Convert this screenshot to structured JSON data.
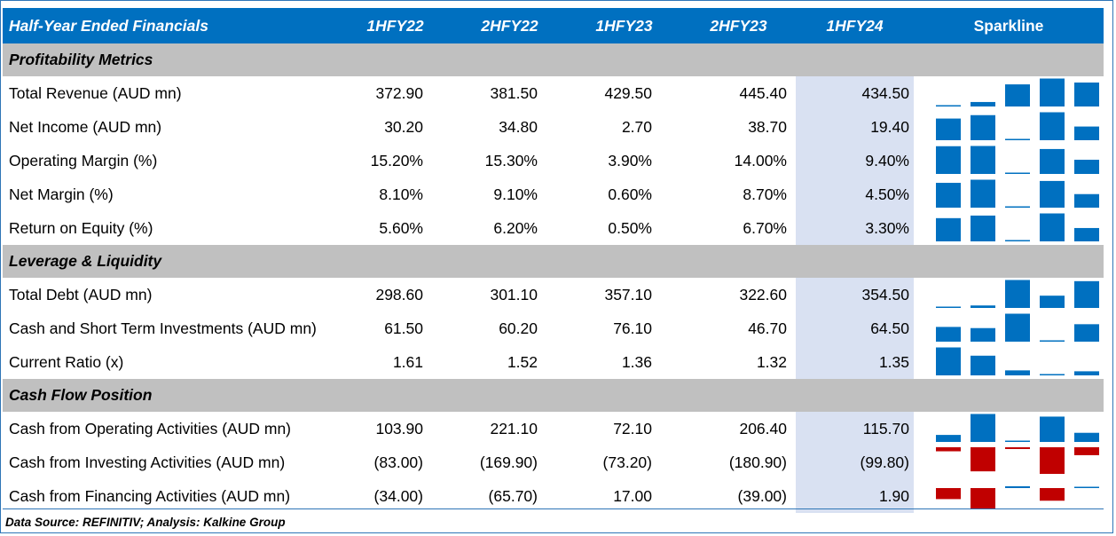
{
  "header": {
    "title": "Half-Year Ended Financials",
    "periods": [
      "1HFY22",
      "2HFY22",
      "1HFY23",
      "2HFY23",
      "1HFY24"
    ],
    "sparkline": "Sparkline"
  },
  "sections": [
    {
      "title": "Profitability Metrics",
      "rows": [
        {
          "label": "Total Revenue (AUD mn)",
          "values": [
            "372.90",
            "381.50",
            "429.50",
            "445.40",
            "434.50"
          ],
          "data": [
            372.9,
            381.5,
            429.5,
            445.4,
            434.5
          ]
        },
        {
          "label": "Net Income (AUD mn)",
          "values": [
            "30.20",
            "34.80",
            "2.70",
            "38.70",
            "19.40"
          ],
          "data": [
            30.2,
            34.8,
            2.7,
            38.7,
            19.4
          ]
        },
        {
          "label": "Operating Margin (%)",
          "values": [
            "15.20%",
            "15.30%",
            "3.90%",
            "14.00%",
            "9.40%"
          ],
          "data": [
            15.2,
            15.3,
            3.9,
            14.0,
            9.4
          ]
        },
        {
          "label": "Net Margin (%)",
          "values": [
            "8.10%",
            "9.10%",
            "0.60%",
            "8.70%",
            "4.50%"
          ],
          "data": [
            8.1,
            9.1,
            0.6,
            8.7,
            4.5
          ]
        },
        {
          "label": "Return on Equity (%)",
          "values": [
            "5.60%",
            "6.20%",
            "0.50%",
            "6.70%",
            "3.30%"
          ],
          "data": [
            5.6,
            6.2,
            0.5,
            6.7,
            3.3
          ]
        }
      ]
    },
    {
      "title": "Leverage & Liquidity",
      "rows": [
        {
          "label": "Total Debt (AUD mn)",
          "values": [
            "298.60",
            "301.10",
            "357.10",
            "322.60",
            "354.50"
          ],
          "data": [
            298.6,
            301.1,
            357.1,
            322.6,
            354.5
          ]
        },
        {
          "label": "Cash and Short Term Investments (AUD mn)",
          "values": [
            "61.50",
            "60.20",
            "76.10",
            "46.70",
            "64.50"
          ],
          "data": [
            61.5,
            60.2,
            76.1,
            46.7,
            64.5
          ]
        },
        {
          "label": "Current Ratio (x)",
          "values": [
            "1.61",
            "1.52",
            "1.36",
            "1.32",
            "1.35"
          ],
          "data": [
            1.61,
            1.52,
            1.36,
            1.32,
            1.35
          ]
        }
      ]
    },
    {
      "title": "Cash Flow Position",
      "rows": [
        {
          "label": "Cash from Operating Activities (AUD mn)",
          "values": [
            "103.90",
            "221.10",
            "72.10",
            "206.40",
            "115.70"
          ],
          "data": [
            103.9,
            221.1,
            72.1,
            206.4,
            115.7
          ]
        },
        {
          "label": "Cash from Investing Activities (AUD mn)",
          "values": [
            "(83.00)",
            "(169.90)",
            "(73.20)",
            "(180.90)",
            "(99.80)"
          ],
          "data": [
            -83.0,
            -169.9,
            -73.2,
            -180.9,
            -99.8
          ]
        },
        {
          "label": "Cash from Financing Activities (AUD mn)",
          "values": [
            "(34.00)",
            "(65.70)",
            "17.00",
            "(39.00)",
            "1.90"
          ],
          "data": [
            -34.0,
            -65.7,
            17.0,
            -39.0,
            1.9
          ]
        }
      ]
    }
  ],
  "colors": {
    "header_bg": "#0070c0",
    "section_bg": "#c0c0c0",
    "highlight_col": "#d9e1f2",
    "positive_bar": "#0070c0",
    "negative_bar": "#c00000"
  },
  "footer": "Data Source: REFINITIV; Analysis: Kalkine Group"
}
